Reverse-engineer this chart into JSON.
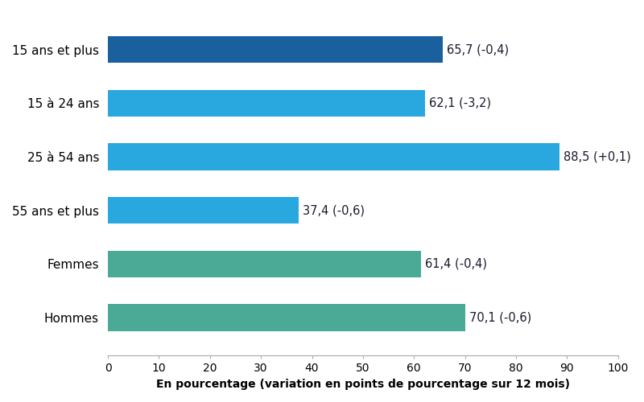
{
  "categories": [
    "15 ans et plus",
    "15 à 24 ans",
    "25 à 54 ans",
    "55 ans et plus",
    "Femmes",
    "Hommes"
  ],
  "values": [
    65.7,
    62.1,
    88.5,
    37.4,
    61.4,
    70.1
  ],
  "labels": [
    "65,7 (-0,4)",
    "62,1 (-3,2)",
    "88,5 (+0,1)",
    "37,4 (-0,6)",
    "61,4 (-0,4)",
    "70,1 (-0,6)"
  ],
  "colors": [
    "#1a5f9e",
    "#29a8e0",
    "#29a8e0",
    "#29a8e0",
    "#4aaa96",
    "#4aaa96"
  ],
  "xlabel": "En pourcentage (variation en points de pourcentage sur 12 mois)",
  "xlim": [
    0,
    100
  ],
  "xticks": [
    0,
    10,
    20,
    30,
    40,
    50,
    60,
    70,
    80,
    90,
    100
  ],
  "label_color": "#1a1a2e",
  "label_fontsize": 10.5,
  "ytick_fontsize": 11,
  "bar_height": 0.5,
  "figsize": [
    8.0,
    5.0
  ],
  "dpi": 100
}
